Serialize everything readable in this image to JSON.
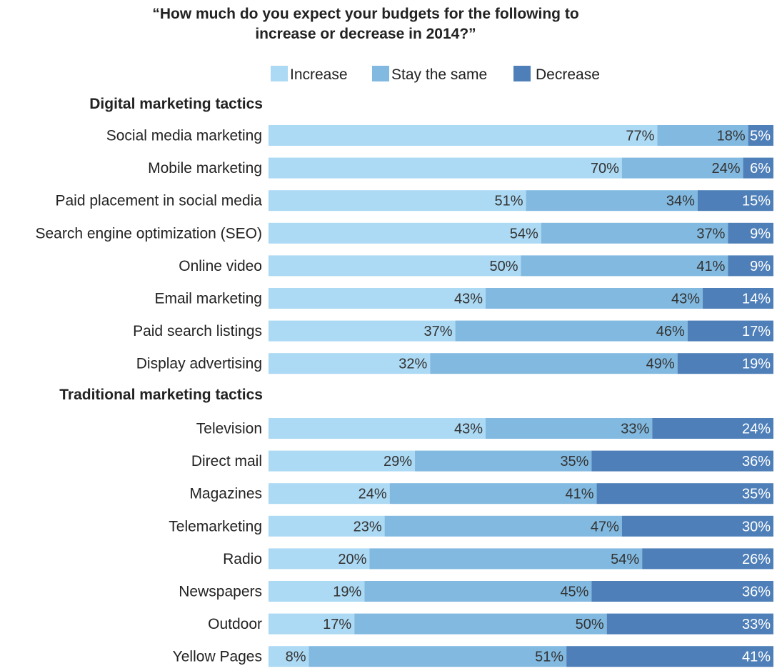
{
  "chart_data": {
    "type": "bar",
    "orientation": "horizontal",
    "stacked": true,
    "percent_scale": true,
    "title": "“How much do you expect your budgets for the following to increase or decrease in 2014?”",
    "title_lines": [
      "“How much do you expect your budgets for the following to",
      "increase or decrease in 2014?”"
    ],
    "legend": {
      "position": "top",
      "items": [
        "Increase",
        "Stay the same",
        "Decrease"
      ]
    },
    "series_colors": [
      "#acd9f3",
      "#82b9e0",
      "#4e7fb8"
    ],
    "series_names": [
      "Increase",
      "Stay the same",
      "Decrease"
    ],
    "groups": [
      {
        "label": "Digital marketing tactics",
        "rows": [
          {
            "label": "Social media marketing",
            "values": [
              77,
              18,
              5
            ]
          },
          {
            "label": "Mobile marketing",
            "values": [
              70,
              24,
              6
            ]
          },
          {
            "label": "Paid placement in social media",
            "values": [
              51,
              34,
              15
            ]
          },
          {
            "label": "Search engine optimization (SEO)",
            "values": [
              54,
              37,
              9
            ]
          },
          {
            "label": "Online video",
            "values": [
              50,
              41,
              9
            ]
          },
          {
            "label": "Email marketing",
            "values": [
              43,
              43,
              14
            ]
          },
          {
            "label": "Paid search listings",
            "values": [
              37,
              46,
              17
            ]
          },
          {
            "label": "Display advertising",
            "values": [
              32,
              49,
              19
            ]
          }
        ]
      },
      {
        "label": "Traditional marketing tactics",
        "rows": [
          {
            "label": "Television",
            "values": [
              43,
              33,
              24
            ]
          },
          {
            "label": "Direct mail",
            "values": [
              29,
              35,
              36
            ]
          },
          {
            "label": "Magazines",
            "values": [
              24,
              41,
              35
            ]
          },
          {
            "label": "Telemarketing",
            "values": [
              23,
              47,
              30
            ]
          },
          {
            "label": "Radio",
            "values": [
              20,
              54,
              26
            ]
          },
          {
            "label": "Newspapers",
            "values": [
              19,
              45,
              36
            ]
          },
          {
            "label": "Outdoor",
            "values": [
              17,
              50,
              33
            ]
          },
          {
            "label": "Yellow Pages",
            "values": [
              8,
              51,
              41
            ]
          }
        ]
      }
    ],
    "value_suffix": "%",
    "xlim": [
      0,
      100
    ],
    "grid": false
  }
}
